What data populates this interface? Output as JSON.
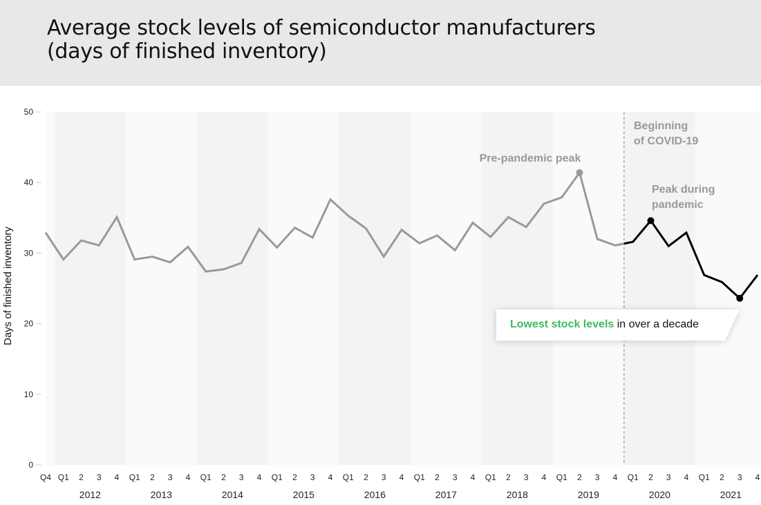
{
  "header": {
    "title_line1": "Average stock levels of semiconductor manufacturers",
    "title_line2": "(days of finished inventory)"
  },
  "chart_data": {
    "type": "line",
    "title": "Average stock levels of semiconductor manufacturers (days of finished inventory)",
    "xlabel": "",
    "ylabel": "Days of finished inventory",
    "ylim": [
      0,
      50
    ],
    "yticks": [
      0,
      10,
      20,
      30,
      40,
      50
    ],
    "quarter_labels": [
      "Q4",
      "Q1",
      "2",
      "3",
      "4",
      "Q1",
      "2",
      "3",
      "4",
      "Q1",
      "2",
      "3",
      "4",
      "Q1",
      "2",
      "3",
      "4",
      "Q1",
      "2",
      "3",
      "4",
      "Q1",
      "2",
      "3",
      "4",
      "Q1",
      "2",
      "3",
      "4",
      "Q1",
      "2",
      "3",
      "4",
      "Q1",
      "2",
      "3",
      "4",
      "Q1",
      "2",
      "3",
      "4"
    ],
    "years": [
      "2012",
      "2013",
      "2014",
      "2015",
      "2016",
      "2017",
      "2018",
      "2019",
      "2020",
      "2021"
    ],
    "x": [
      "2011 Q4",
      "2012 Q1",
      "2012 Q2",
      "2012 Q3",
      "2012 Q4",
      "2013 Q1",
      "2013 Q2",
      "2013 Q3",
      "2013 Q4",
      "2014 Q1",
      "2014 Q2",
      "2014 Q3",
      "2014 Q4",
      "2015 Q1",
      "2015 Q2",
      "2015 Q3",
      "2015 Q4",
      "2016 Q1",
      "2016 Q2",
      "2016 Q3",
      "2016 Q4",
      "2017 Q1",
      "2017 Q2",
      "2017 Q3",
      "2017 Q4",
      "2018 Q1",
      "2018 Q2",
      "2018 Q3",
      "2018 Q4",
      "2019 Q1",
      "2019 Q2",
      "2019 Q3",
      "2019 Q4",
      "2020 Q1",
      "2020 Q2",
      "2020 Q3",
      "2020 Q4",
      "2021 Q1",
      "2021 Q2",
      "2021 Q3",
      "2021 Q4"
    ],
    "values": [
      32.9,
      29.1,
      31.8,
      31.1,
      35.1,
      29.1,
      29.5,
      28.7,
      30.9,
      27.4,
      27.7,
      28.6,
      33.4,
      30.8,
      33.6,
      32.2,
      37.6,
      35.3,
      33.5,
      29.5,
      33.3,
      31.4,
      32.5,
      30.4,
      34.3,
      32.3,
      35.1,
      33.7,
      37.0,
      37.9,
      41.4,
      32.0,
      31.1,
      31.6,
      34.6,
      31.0,
      32.9,
      26.9,
      25.9,
      23.6,
      26.9
    ],
    "series_colors": {
      "pre_pandemic": "#999999",
      "pandemic": "#000000"
    },
    "pandemic_start_marker": "Beginning of COVID-19",
    "annotations": [
      {
        "text": "Pre-pandemic peak",
        "point": "2019 Q2"
      },
      {
        "text_line1": "Peak during",
        "text_line2": "pandemic",
        "point": "2020 Q2"
      },
      {
        "text_line1": "Beginning",
        "text_line2": "of COVID-19"
      }
    ],
    "callout": {
      "highlight": "Lowest stock levels",
      "rest": " in over a decade",
      "point": "2021 Q3",
      "highlight_color": "#3dbb5e"
    }
  }
}
